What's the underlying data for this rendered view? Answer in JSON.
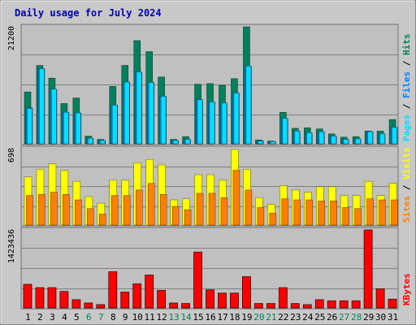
{
  "colors": {
    "frame_bg": "#c8c8c8",
    "plot_bg": "#c0c0c0",
    "title": "#0000b4",
    "hits": "#00805c",
    "files": "#0080ff",
    "pages": "#00e0ff",
    "visits": "#ffff00",
    "sites": "#ff8000",
    "kbytes": "#ff0000",
    "weekend_label": "#00805c",
    "slash": "#000000"
  },
  "chart_data": {
    "type": "bar",
    "title": "Daily usage for July 2024",
    "x": [
      1,
      2,
      3,
      4,
      5,
      6,
      7,
      8,
      9,
      10,
      11,
      12,
      13,
      14,
      15,
      16,
      17,
      18,
      19,
      20,
      21,
      22,
      23,
      24,
      25,
      26,
      27,
      28,
      29,
      30,
      31
    ],
    "weekend_days": [
      6,
      7,
      13,
      14,
      20,
      21,
      27,
      28
    ],
    "panels": [
      {
        "id": "top",
        "ymax_label": "21200",
        "ymax": 21200,
        "legend": [
          "Pages",
          "Files",
          "Hits"
        ],
        "series": [
          {
            "name": "Hits",
            "values": [
              9400,
              14200,
              11900,
              7300,
              8300,
              1400,
              800,
              10400,
              14200,
              18700,
              16700,
              12100,
              800,
              1300,
              10800,
              10900,
              10600,
              11800,
              21200,
              700,
              500,
              5700,
              2800,
              2900,
              2700,
              1800,
              1200,
              1300,
              2300,
              2300,
              4400
            ]
          },
          {
            "name": "Files",
            "values": [
              6500,
              13600,
              9900,
              5700,
              5600,
              1000,
              600,
              7000,
              11200,
              13000,
              11100,
              8600,
              600,
              800,
              8000,
              7600,
              7400,
              9200,
              14100,
              500,
              400,
              4600,
              2300,
              2000,
              2200,
              1400,
              800,
              900,
              2200,
              1800,
              3000
            ]
          },
          {
            "name": "Pages",
            "values": [
              6400,
              13600,
              9900,
              5700,
              5600,
              1000,
              600,
              7000,
              11200,
              13000,
              11100,
              8600,
              600,
              800,
              8000,
              7600,
              7400,
              9200,
              14100,
              500,
              400,
              4600,
              2300,
              2000,
              2200,
              1400,
              800,
              900,
              2200,
              1800,
              3000
            ]
          }
        ]
      },
      {
        "id": "middle",
        "ymax_label": "698",
        "ymax": 698,
        "legend": [
          "Sites",
          "Visits"
        ],
        "series": [
          {
            "name": "Visits",
            "values": [
              440,
              510,
              560,
              500,
              400,
              260,
              200,
              410,
              410,
              570,
              600,
              550,
              230,
              240,
              460,
              460,
              410,
              690,
              510,
              250,
              190,
              360,
              320,
              300,
              350,
              350,
              270,
              270,
              400,
              270,
              380
            ]
          },
          {
            "name": "Sites",
            "values": [
              270,
              280,
              300,
              280,
              230,
              150,
              100,
              270,
              270,
              320,
              380,
              280,
              170,
              140,
              290,
              290,
              250,
              500,
              320,
              160,
              110,
              240,
              230,
              230,
              220,
              220,
              160,
              150,
              240,
              230,
              230
            ]
          }
        ]
      },
      {
        "id": "bottom",
        "ymax_label": "1423436",
        "ymax": 1423436,
        "legend": [
          "KBytes"
        ],
        "series": [
          {
            "name": "KBytes",
            "values": [
              430000,
              370000,
              370000,
              300000,
              150000,
              90000,
              60000,
              660000,
              290000,
              440000,
              600000,
              320000,
              90000,
              80000,
              1020000,
              330000,
              270000,
              270000,
              570000,
              80000,
              80000,
              370000,
              80000,
              60000,
              150000,
              130000,
              130000,
              130000,
              1423436,
              350000,
              160000
            ]
          }
        ]
      }
    ]
  }
}
